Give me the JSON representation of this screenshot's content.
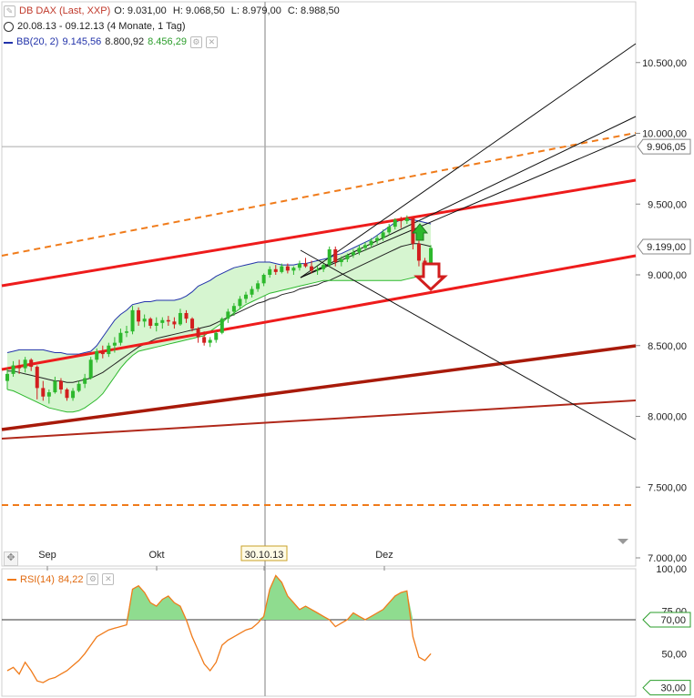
{
  "legend": {
    "instrument": "DB DAX (Last, XXP)",
    "o": "O: 9.031,00",
    "h": "H: 9.068,50",
    "l": "L: 8.979,00",
    "c": "C: 8.988,50",
    "range": "20.08.13 - 09.12.13 (4 Monate, 1 Tag)",
    "bb_label": "BB(20, 2)",
    "bb_upper": "9.145,56",
    "bb_mid": "8.800,92",
    "bb_lower": "8.456,29",
    "rsi_label": "RSI(14)",
    "rsi_value": "84,22"
  },
  "colors": {
    "up": "#2db82d",
    "down": "#d21e1e",
    "bb_upper": "#2233aa",
    "bb_lower": "#2db82d",
    "bb_fill": "#d6f5d0",
    "channel": "#ee1c1c",
    "support": "#a81a0a",
    "dashed": "#f07b1a",
    "rsi": "#f07b1a",
    "rsi_fill": "#8fdc8f"
  },
  "chart_data": [
    {
      "type": "candlestick",
      "title": "DB DAX (Last, XXP)",
      "x_labels": [
        "Sep",
        "Okt",
        "30.10.13",
        "Dez"
      ],
      "y_ticks": [
        "10.500,00",
        "10.000,00",
        "9.500,00",
        "9.000,00",
        "8.500,00",
        "8.000,00",
        "7.500,00",
        "7.000,00"
      ],
      "ylim": [
        7000,
        10850
      ],
      "price_markers": [
        {
          "value": 9906.05,
          "label": "9.906,05"
        },
        {
          "value": 9199.0,
          "label": "9.199,00"
        }
      ],
      "candles": [
        [
          8250,
          8340,
          8190,
          8300
        ],
        [
          8300,
          8390,
          8280,
          8360
        ],
        [
          8360,
          8400,
          8300,
          8340
        ],
        [
          8340,
          8420,
          8310,
          8400
        ],
        [
          8400,
          8410,
          8320,
          8350
        ],
        [
          8350,
          8360,
          8120,
          8200
        ],
        [
          8200,
          8250,
          8110,
          8140
        ],
        [
          8140,
          8190,
          8090,
          8170
        ],
        [
          8170,
          8280,
          8160,
          8250
        ],
        [
          8250,
          8270,
          8160,
          8190
        ],
        [
          8190,
          8200,
          8110,
          8130
        ],
        [
          8130,
          8200,
          8110,
          8180
        ],
        [
          8180,
          8250,
          8170,
          8230
        ],
        [
          8230,
          8300,
          8200,
          8270
        ],
        [
          8270,
          8420,
          8260,
          8400
        ],
        [
          8400,
          8480,
          8380,
          8460
        ],
        [
          8460,
          8500,
          8410,
          8440
        ],
        [
          8440,
          8520,
          8420,
          8500
        ],
        [
          8500,
          8560,
          8450,
          8520
        ],
        [
          8520,
          8620,
          8500,
          8590
        ],
        [
          8590,
          8640,
          8560,
          8600
        ],
        [
          8600,
          8780,
          8580,
          8750
        ],
        [
          8750,
          8770,
          8640,
          8670
        ],
        [
          8670,
          8720,
          8630,
          8690
        ],
        [
          8690,
          8700,
          8620,
          8640
        ],
        [
          8640,
          8700,
          8600,
          8660
        ],
        [
          8660,
          8700,
          8620,
          8680
        ],
        [
          8680,
          8710,
          8640,
          8670
        ],
        [
          8670,
          8700,
          8620,
          8650
        ],
        [
          8650,
          8760,
          8640,
          8730
        ],
        [
          8730,
          8750,
          8660,
          8690
        ],
        [
          8690,
          8700,
          8600,
          8620
        ],
        [
          8620,
          8630,
          8520,
          8560
        ],
        [
          8560,
          8600,
          8500,
          8520
        ],
        [
          8520,
          8560,
          8490,
          8540
        ],
        [
          8540,
          8600,
          8520,
          8590
        ],
        [
          8590,
          8700,
          8580,
          8690
        ],
        [
          8690,
          8760,
          8660,
          8740
        ],
        [
          8740,
          8800,
          8710,
          8780
        ],
        [
          8780,
          8850,
          8760,
          8830
        ],
        [
          8830,
          8880,
          8800,
          8860
        ],
        [
          8860,
          8920,
          8840,
          8900
        ],
        [
          8900,
          8960,
          8880,
          8940
        ],
        [
          8940,
          9010,
          8920,
          9000
        ],
        [
          9000,
          9060,
          8980,
          9040
        ],
        [
          9040,
          9070,
          9000,
          9020
        ],
        [
          9020,
          9080,
          9010,
          9060
        ],
        [
          9060,
          9080,
          9010,
          9030
        ],
        [
          9030,
          9060,
          9000,
          9050
        ],
        [
          9050,
          9100,
          9030,
          9080
        ],
        [
          9080,
          9120,
          9050,
          9060
        ],
        [
          9060,
          9100,
          9010,
          9030
        ],
        [
          9030,
          9060,
          9000,
          9040
        ],
        [
          9040,
          9080,
          9020,
          9070
        ],
        [
          9070,
          9200,
          9060,
          9180
        ],
        [
          9180,
          9200,
          9060,
          9090
        ],
        [
          9090,
          9130,
          9060,
          9110
        ],
        [
          9110,
          9150,
          9090,
          9140
        ],
        [
          9140,
          9180,
          9120,
          9160
        ],
        [
          9160,
          9210,
          9140,
          9190
        ],
        [
          9190,
          9230,
          9170,
          9210
        ],
        [
          9210,
          9260,
          9190,
          9240
        ],
        [
          9240,
          9280,
          9220,
          9260
        ],
        [
          9260,
          9320,
          9240,
          9300
        ],
        [
          9300,
          9360,
          9280,
          9340
        ],
        [
          9340,
          9400,
          9320,
          9390
        ],
        [
          9390,
          9410,
          9330,
          9380
        ],
        [
          9380,
          9420,
          9360,
          9400
        ],
        [
          9400,
          9400,
          9180,
          9220
        ],
        [
          9220,
          9240,
          9060,
          9100
        ],
        [
          9100,
          9120,
          8990,
          9010
        ],
        [
          9010,
          9210,
          8980,
          9190
        ]
      ],
      "bollinger": {
        "upper": [
          8450,
          8460,
          8470,
          8470,
          8470,
          8470,
          8470,
          8460,
          8450,
          8450,
          8440,
          8440,
          8440,
          8450,
          8460,
          8500,
          8560,
          8620,
          8680,
          8720,
          8750,
          8790,
          8800,
          8810,
          8810,
          8820,
          8820,
          8820,
          8820,
          8830,
          8850,
          8880,
          8920,
          8940,
          8960,
          8990,
          9010,
          9030,
          9050,
          9060,
          9070,
          9080,
          9090,
          9090,
          9090,
          9080,
          9070,
          9070,
          9070,
          9080,
          9080,
          9090,
          9100,
          9110,
          9120,
          9140,
          9150,
          9170,
          9190,
          9210,
          9230,
          9250,
          9280,
          9310,
          9340,
          9370,
          9390,
          9390,
          9390,
          9380,
          9370,
          9360
        ],
        "middle": [
          8320,
          8320,
          8310,
          8300,
          8290,
          8280,
          8270,
          8260,
          8250,
          8250,
          8240,
          8240,
          8250,
          8260,
          8270,
          8290,
          8310,
          8340,
          8370,
          8400,
          8430,
          8460,
          8490,
          8510,
          8530,
          8550,
          8560,
          8570,
          8580,
          8590,
          8600,
          8610,
          8620,
          8630,
          8640,
          8660,
          8680,
          8700,
          8720,
          8740,
          8760,
          8780,
          8800,
          8810,
          8830,
          8840,
          8860,
          8870,
          8880,
          8900,
          8910,
          8920,
          8930,
          8950,
          8960,
          8980,
          9000,
          9020,
          9040,
          9060,
          9080,
          9100,
          9120,
          9140,
          9160,
          9180,
          9200,
          9210,
          9220,
          9220,
          9210,
          9200
        ],
        "lower": [
          8190,
          8180,
          8160,
          8140,
          8120,
          8100,
          8080,
          8060,
          8050,
          8040,
          8030,
          8030,
          8040,
          8060,
          8090,
          8120,
          8160,
          8220,
          8280,
          8340,
          8390,
          8430,
          8460,
          8470,
          8480,
          8490,
          8500,
          8510,
          8520,
          8530,
          8540,
          8550,
          8560,
          8570,
          8600,
          8630,
          8660,
          8700,
          8730,
          8760,
          8790,
          8810,
          8830,
          8850,
          8870,
          8880,
          8890,
          8900,
          8910,
          8920,
          8930,
          8940,
          8950,
          8960,
          8960,
          8960,
          8960,
          8960,
          8960,
          8960,
          8960,
          8960,
          8960,
          8960,
          8960,
          8960,
          8960,
          8970,
          8980,
          8990,
          9000,
          9010
        ]
      }
    },
    {
      "type": "line",
      "title": "RSI(14)",
      "y_ticks": [
        "100,00",
        "75,00",
        "50,00"
      ],
      "ylim": [
        25,
        100
      ],
      "markers": [
        {
          "value": 70,
          "label": "70,00"
        },
        {
          "value": 30,
          "label": "30,00"
        }
      ],
      "values": [
        40,
        42,
        38,
        45,
        40,
        34,
        33,
        35,
        36,
        38,
        40,
        43,
        46,
        50,
        55,
        60,
        62,
        64,
        65,
        66,
        67,
        88,
        90,
        86,
        80,
        78,
        82,
        84,
        80,
        78,
        70,
        60,
        52,
        44,
        40,
        45,
        55,
        58,
        60,
        62,
        64,
        65,
        68,
        72,
        88,
        96,
        92,
        84,
        80,
        76,
        78,
        76,
        74,
        72,
        70,
        66,
        68,
        70,
        74,
        72,
        70,
        72,
        74,
        76,
        80,
        84,
        86,
        87,
        60,
        48,
        46,
        50
      ]
    }
  ]
}
